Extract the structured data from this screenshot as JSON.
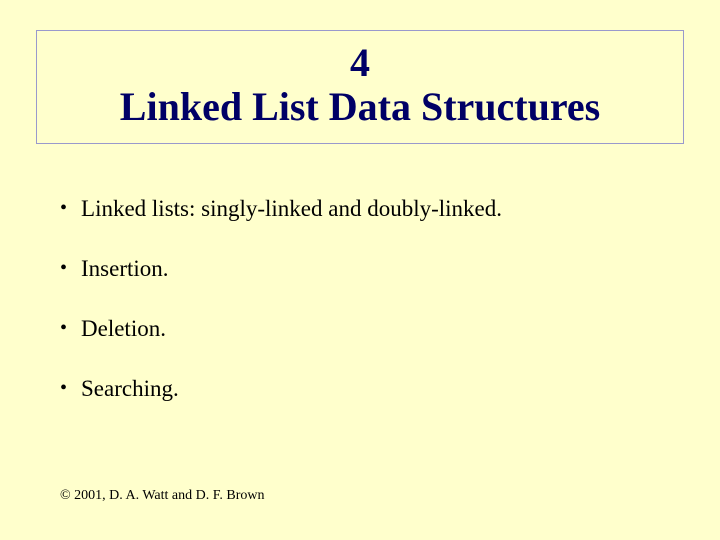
{
  "slide": {
    "background_color": "#ffffcc",
    "title_box": {
      "border_color": "#9999cc",
      "number": "4",
      "text": "Linked List Data Structures",
      "color": "#000066",
      "fontsize": 40,
      "fontweight": "bold"
    },
    "bullets": [
      "Linked lists: singly-linked and doubly-linked.",
      "Insertion.",
      "Deletion.",
      "Searching."
    ],
    "bullet_fontsize": 23,
    "bullet_color": "#000000",
    "copyright": "© 2001, D. A. Watt and D. F. Brown",
    "copyright_fontsize": 14
  }
}
